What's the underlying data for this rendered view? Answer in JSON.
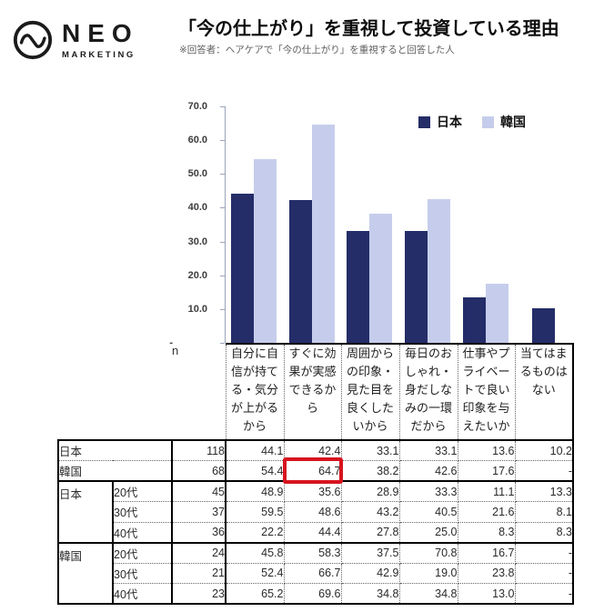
{
  "header": {
    "logo": {
      "name": "NEO",
      "sub": "MARKETING",
      "icon": "pulse-circle-icon"
    },
    "title": "「今の仕上がり」を重視して投資している理由",
    "subtitle": "※回答者：ヘアケアで「今の仕上がり」を重視すると回答した人"
  },
  "colors": {
    "japan_bar": "#242d68",
    "korea_bar": "#c6cdec",
    "highlight_red": "#d7141f"
  },
  "chart_data": {
    "type": "bar",
    "title": "「今の仕上がり」を重視して投資している理由",
    "categories": [
      "自分に自信が持てる・気分が上がるから",
      "すぐに効果が実感できるから",
      "周囲からの印象・見た目を良くしたいから",
      "毎日のおしゃれ・身だしなみの一環だから",
      "仕事やプライベートで良い印象を与えたいか",
      "当てはまるものはない"
    ],
    "series": [
      {
        "name": "日本",
        "color": "#242d68",
        "values": [
          44.1,
          42.4,
          33.1,
          33.1,
          13.6,
          10.2
        ]
      },
      {
        "name": "韓国",
        "color": "#c6cdec",
        "values": [
          54.4,
          64.7,
          38.2,
          42.6,
          17.6,
          null
        ]
      }
    ],
    "ylim": [
      0,
      70
    ],
    "yticks": [
      "70.0",
      "60.0",
      "50.0",
      "40.0",
      "30.0",
      "20.0",
      "10.0",
      "-"
    ],
    "ylabel": "",
    "xlabel": "",
    "grid": false,
    "legend_position": "top-right"
  },
  "table": {
    "n_header": "n",
    "columns": [
      "自分に自信が持てる・気分が上がるから",
      "すぐに効果が実感できるから",
      "周囲からの印象・見た目を良くしたいから",
      "毎日のおしゃれ・身だしなみの一環だから",
      "仕事やプライベートで良い印象を与えたいか",
      "当てはまるものはない"
    ],
    "rows": [
      {
        "group": "日本",
        "age": "",
        "n": "118",
        "values": [
          "44.1",
          "42.4",
          "33.1",
          "33.1",
          "13.6",
          "10.2"
        ]
      },
      {
        "group": "韓国",
        "age": "",
        "n": "68",
        "values": [
          "54.4",
          "64.7",
          "38.2",
          "42.6",
          "17.6",
          "-"
        ],
        "highlight_col": 1
      },
      {
        "group": "日本",
        "age": "20代",
        "n": "45",
        "values": [
          "48.9",
          "35.6",
          "28.9",
          "33.3",
          "11.1",
          "13.3"
        ]
      },
      {
        "group": "",
        "age": "30代",
        "n": "37",
        "values": [
          "59.5",
          "48.6",
          "43.2",
          "40.5",
          "21.6",
          "8.1"
        ]
      },
      {
        "group": "",
        "age": "40代",
        "n": "36",
        "values": [
          "22.2",
          "44.4",
          "27.8",
          "25.0",
          "8.3",
          "8.3"
        ]
      },
      {
        "group": "韓国",
        "age": "20代",
        "n": "24",
        "values": [
          "45.8",
          "58.3",
          "37.5",
          "70.8",
          "16.7",
          "-"
        ]
      },
      {
        "group": "",
        "age": "30代",
        "n": "21",
        "values": [
          "52.4",
          "66.7",
          "42.9",
          "19.0",
          "23.8",
          "-"
        ]
      },
      {
        "group": "",
        "age": "40代",
        "n": "23",
        "values": [
          "65.2",
          "69.6",
          "34.8",
          "34.8",
          "13.0",
          "-"
        ]
      }
    ]
  }
}
